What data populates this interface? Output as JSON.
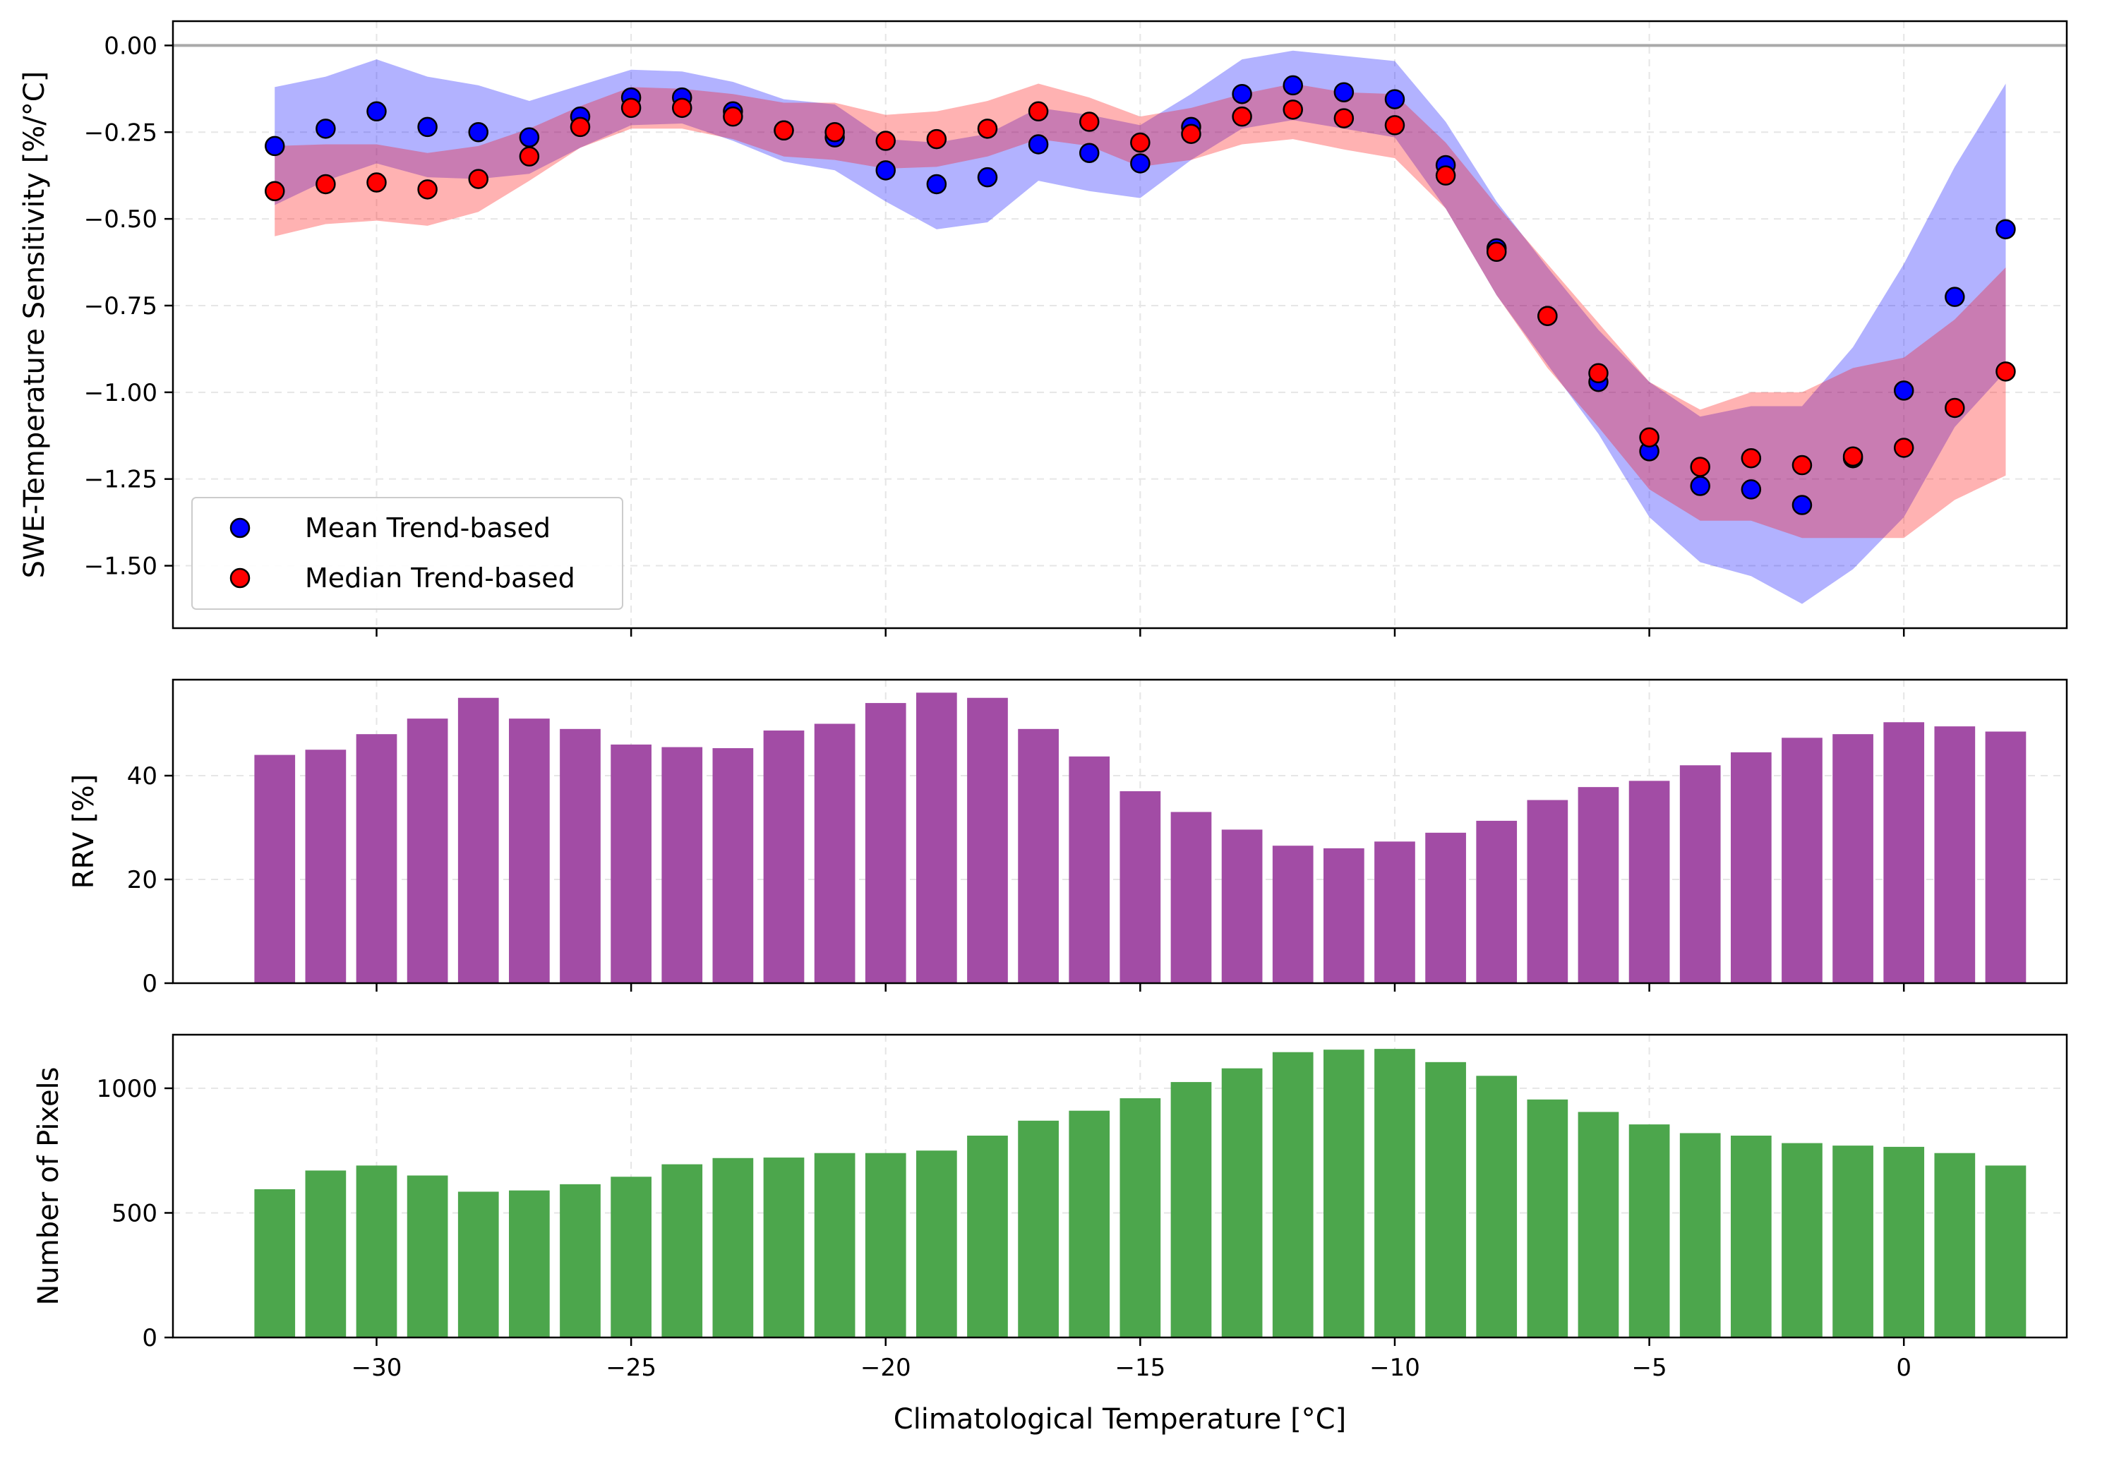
{
  "chart_data": [
    {
      "type": "scatter",
      "ylabel": "SWE-Temperature Sensitivity [%/°C]",
      "xlim": [
        -34,
        3.2
      ],
      "ylim": [
        -1.68,
        0.07
      ],
      "yticks": [
        0.0,
        -0.25,
        -0.5,
        -0.75,
        -1.0,
        -1.25,
        -1.5
      ],
      "ytick_labels": [
        "0.00",
        "−0.25",
        "−0.50",
        "−0.75",
        "−1.00",
        "−1.25",
        "−1.50"
      ],
      "grid": true,
      "reference_line_y": 0,
      "legend_position": "lower-left",
      "x": [
        -32,
        -31,
        -30,
        -29,
        -28,
        -27,
        -26,
        -25,
        -24,
        -23,
        -22,
        -21,
        -20,
        -19,
        -18,
        -17,
        -16,
        -15,
        -14,
        -13,
        -12,
        -11,
        -10,
        -9,
        -8,
        -7,
        -6,
        -5,
        -4,
        -3,
        -2,
        -1,
        0,
        1,
        2
      ],
      "series": [
        {
          "name": "Mean Trend-based",
          "color": "#0000ff",
          "values": [
            -0.29,
            -0.24,
            -0.19,
            -0.235,
            -0.25,
            -0.265,
            -0.205,
            -0.15,
            -0.15,
            -0.19,
            -0.245,
            -0.265,
            -0.36,
            -0.4,
            -0.38,
            -0.285,
            -0.31,
            -0.34,
            -0.235,
            -0.14,
            -0.115,
            -0.135,
            -0.155,
            -0.345,
            -0.585,
            -0.78,
            -0.97,
            -1.17,
            -1.27,
            -1.28,
            -1.325,
            -1.19,
            -0.995,
            -0.725,
            -0.53
          ],
          "band_upper": [
            -0.12,
            -0.09,
            -0.04,
            -0.09,
            -0.115,
            -0.16,
            -0.115,
            -0.07,
            -0.075,
            -0.105,
            -0.155,
            -0.17,
            -0.27,
            -0.28,
            -0.255,
            -0.18,
            -0.2,
            -0.23,
            -0.14,
            -0.04,
            -0.015,
            -0.03,
            -0.045,
            -0.22,
            -0.45,
            -0.64,
            -0.82,
            -0.97,
            -1.07,
            -1.04,
            -1.04,
            -0.87,
            -0.63,
            -0.35,
            -0.11
          ],
          "band_lower": [
            -0.46,
            -0.39,
            -0.34,
            -0.38,
            -0.385,
            -0.37,
            -0.295,
            -0.23,
            -0.225,
            -0.275,
            -0.335,
            -0.36,
            -0.45,
            -0.53,
            -0.51,
            -0.39,
            -0.42,
            -0.44,
            -0.33,
            -0.24,
            -0.215,
            -0.24,
            -0.265,
            -0.47,
            -0.72,
            -0.92,
            -1.12,
            -1.36,
            -1.49,
            -1.53,
            -1.61,
            -1.51,
            -1.36,
            -1.1,
            -0.94
          ],
          "band_color": "#0000ff"
        },
        {
          "name": "Median Trend-based",
          "color": "#ff0000",
          "values": [
            -0.42,
            -0.4,
            -0.395,
            -0.415,
            -0.385,
            -0.32,
            -0.235,
            -0.18,
            -0.18,
            -0.205,
            -0.245,
            -0.25,
            -0.275,
            -0.27,
            -0.24,
            -0.19,
            -0.22,
            -0.28,
            -0.255,
            -0.205,
            -0.185,
            -0.21,
            -0.23,
            -0.375,
            -0.595,
            -0.78,
            -0.945,
            -1.13,
            -1.215,
            -1.19,
            -1.21,
            -1.185,
            -1.16,
            -1.045,
            -0.94
          ],
          "band_upper": [
            -0.29,
            -0.285,
            -0.285,
            -0.31,
            -0.29,
            -0.24,
            -0.175,
            -0.12,
            -0.125,
            -0.14,
            -0.165,
            -0.165,
            -0.2,
            -0.19,
            -0.16,
            -0.11,
            -0.15,
            -0.205,
            -0.18,
            -0.14,
            -0.11,
            -0.135,
            -0.14,
            -0.28,
            -0.46,
            -0.63,
            -0.8,
            -0.97,
            -1.05,
            -1.0,
            -1.0,
            -0.93,
            -0.9,
            -0.79,
            -0.64
          ],
          "band_lower": [
            -0.55,
            -0.515,
            -0.505,
            -0.52,
            -0.48,
            -0.39,
            -0.295,
            -0.24,
            -0.24,
            -0.27,
            -0.32,
            -0.33,
            -0.355,
            -0.35,
            -0.32,
            -0.27,
            -0.29,
            -0.35,
            -0.33,
            -0.285,
            -0.27,
            -0.3,
            -0.325,
            -0.47,
            -0.72,
            -0.93,
            -1.1,
            -1.28,
            -1.37,
            -1.37,
            -1.42,
            -1.42,
            -1.42,
            -1.31,
            -1.24
          ],
          "band_color": "#ff0000"
        }
      ]
    },
    {
      "type": "bar",
      "ylabel": "RRV [%]",
      "xlim": [
        -34,
        3.2
      ],
      "ylim": [
        0,
        58.5
      ],
      "yticks": [
        0,
        20,
        40
      ],
      "ytick_labels": [
        "0",
        "20",
        "40"
      ],
      "grid": true,
      "color": "#a24ca5",
      "x": [
        -32,
        -31,
        -30,
        -29,
        -28,
        -27,
        -26,
        -25,
        -24,
        -23,
        -22,
        -21,
        -20,
        -19,
        -18,
        -17,
        -16,
        -15,
        -14,
        -13,
        -12,
        -11,
        -10,
        -9,
        -8,
        -7,
        -6,
        -5,
        -4,
        -3,
        -2,
        -1,
        0,
        1,
        2
      ],
      "values": [
        44,
        45,
        48,
        51,
        55,
        51,
        49,
        46,
        45.5,
        45.3,
        48.7,
        50,
        54,
        56,
        55,
        49,
        43.7,
        37,
        33,
        29.6,
        26.5,
        26,
        27.3,
        29,
        31.3,
        35.3,
        37.8,
        39,
        42,
        44.5,
        47.3,
        48,
        50.3,
        49.5,
        48.5
      ]
    },
    {
      "type": "bar",
      "ylabel": "Number of Pixels",
      "xlabel": "Climatological Temperature [°C]",
      "xlim": [
        -34,
        3.2
      ],
      "ylim": [
        0,
        1215
      ],
      "yticks": [
        0,
        500,
        1000
      ],
      "ytick_labels": [
        "0",
        "500",
        "1000"
      ],
      "xticks": [
        -30,
        -25,
        -20,
        -15,
        -10,
        -5,
        0
      ],
      "xtick_labels": [
        "−30",
        "−25",
        "−20",
        "−15",
        "−10",
        "−5",
        "0"
      ],
      "grid": true,
      "color": "#4ca64c",
      "x": [
        -32,
        -31,
        -30,
        -29,
        -28,
        -27,
        -26,
        -25,
        -24,
        -23,
        -22,
        -21,
        -20,
        -19,
        -18,
        -17,
        -16,
        -15,
        -14,
        -13,
        -12,
        -11,
        -10,
        -9,
        -8,
        -7,
        -6,
        -5,
        -4,
        -3,
        -2,
        -1,
        0,
        1,
        2
      ],
      "values": [
        595,
        670,
        690,
        650,
        585,
        590,
        615,
        645,
        695,
        720,
        722,
        740,
        740,
        750,
        810,
        870,
        910,
        960,
        1025,
        1080,
        1145,
        1155,
        1158,
        1105,
        1050,
        955,
        905,
        855,
        820,
        810,
        780,
        770,
        765,
        740,
        690
      ]
    }
  ]
}
